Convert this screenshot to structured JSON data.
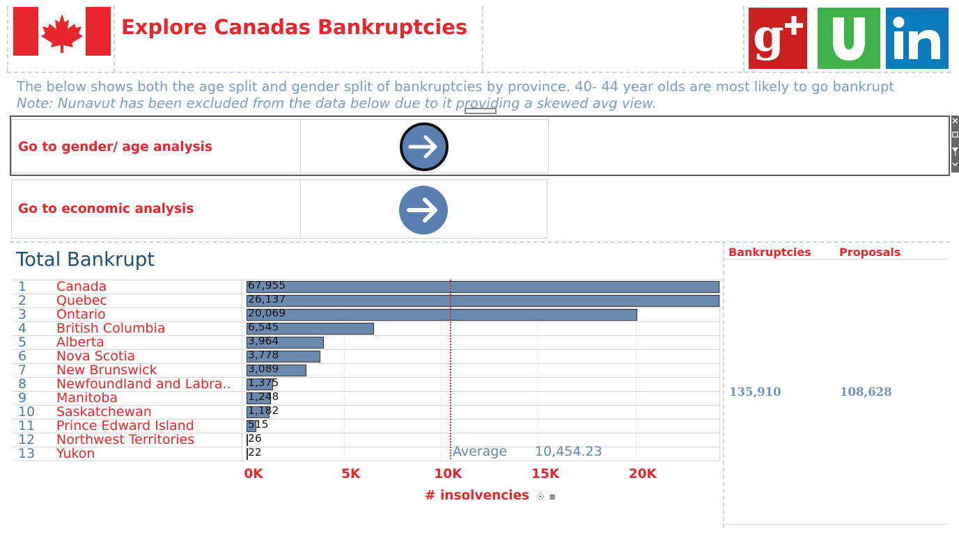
{
  "header": {
    "title": "Explore Canadas Bankruptcies",
    "flag_icon": "canada-flag-icon",
    "social": [
      {
        "name": "google-plus-icon",
        "label": "g+",
        "color": "#cc1f1f"
      },
      {
        "name": "udemy-icon",
        "label": "U",
        "color": "#3fb34a"
      },
      {
        "name": "linkedin-icon",
        "label": "in",
        "color": "#0b7bbd"
      }
    ]
  },
  "intro": {
    "subtitle": "The below shows both the age split and gender split of bankruptcies by province. 40- 44 year olds are most likely to go bankrupt",
    "note": "Note: Nunavut has been excluded from the data below due to it providing a skewed avg view."
  },
  "nav": {
    "gender_age_label": "Go to gender/ age analysis",
    "economic_label": "Go to economic analysis",
    "arrow_icon": "arrow-right-circle-icon"
  },
  "chart_data": {
    "type": "bar",
    "title": "Total Bankrupt",
    "orientation": "horizontal",
    "categories": [
      "Canada",
      "Quebec",
      "Ontario",
      "British Columbia",
      "Alberta",
      "Nova Scotia",
      "New Brunswick",
      "Newfoundland and Labra..",
      "Manitoba",
      "Saskatchewan",
      "Prince Edward Island",
      "Northwest Territories",
      "Yukon"
    ],
    "ranks": [
      "1",
      "2",
      "3",
      "4",
      "5",
      "6",
      "7",
      "8",
      "9",
      "10",
      "11",
      "12",
      "13"
    ],
    "values": [
      67955,
      26137,
      20069,
      6545,
      3964,
      3778,
      3089,
      1375,
      1248,
      1182,
      515,
      26,
      22
    ],
    "value_labels": [
      "67,955",
      "26,137",
      "20,069",
      "6,545",
      "3,964",
      "3,778",
      "3,089",
      "1,375",
      "1,248",
      "1,182",
      "515",
      "26",
      "22"
    ],
    "xlabel": "# insolvencies",
    "x_ticks": [
      0,
      5000,
      10000,
      15000,
      20000
    ],
    "x_tick_labels": [
      "0K",
      "5K",
      "10K",
      "15K",
      "20K"
    ],
    "xlim": [
      0,
      24300
    ],
    "reference_line": {
      "label": "Average",
      "value": 10454.23,
      "value_label": "10,454.23",
      "color": "#e8262b"
    },
    "bar_color": "#6a8ab1",
    "grid": true
  },
  "summary": {
    "bankruptcies_header": "Bankruptcies",
    "proposals_header": "Proposals",
    "bankruptcies_value": "135,910",
    "proposals_value": "108,628"
  },
  "colors": {
    "accent": "#e8262b",
    "text_blue": "#7a9cc2",
    "bar": "#6a8ab1"
  }
}
